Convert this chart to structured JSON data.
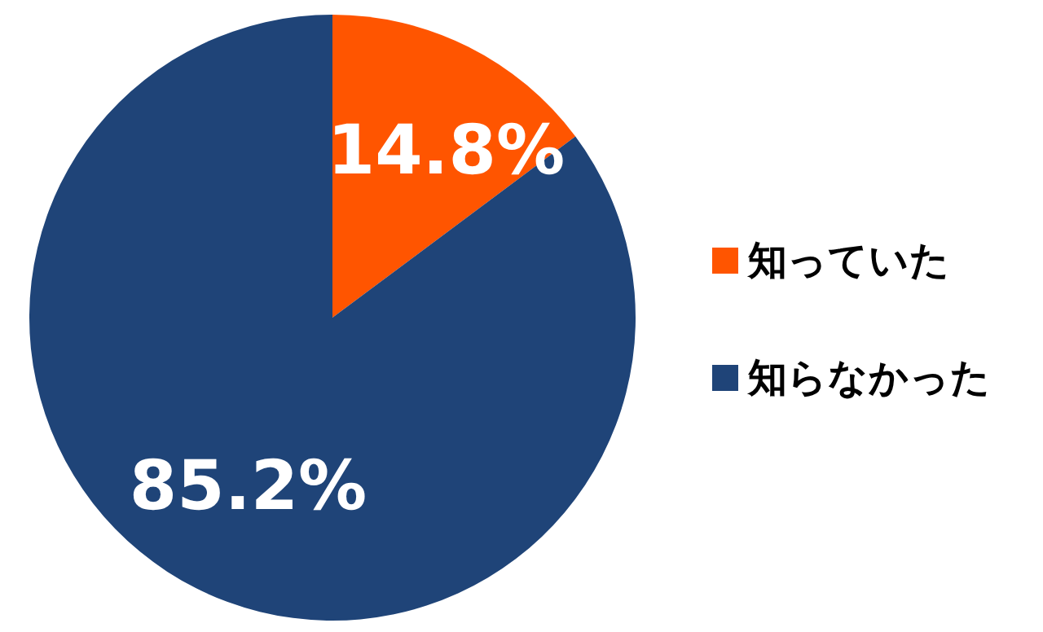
{
  "chart_data": {
    "type": "pie",
    "categories": [
      "知っていた",
      "知らなかった"
    ],
    "values": [
      14.8,
      85.2
    ],
    "colors": [
      "#ff5500",
      "#1f4478"
    ],
    "value_labels": [
      "14.8%",
      "85.2%"
    ],
    "legend": "right"
  }
}
